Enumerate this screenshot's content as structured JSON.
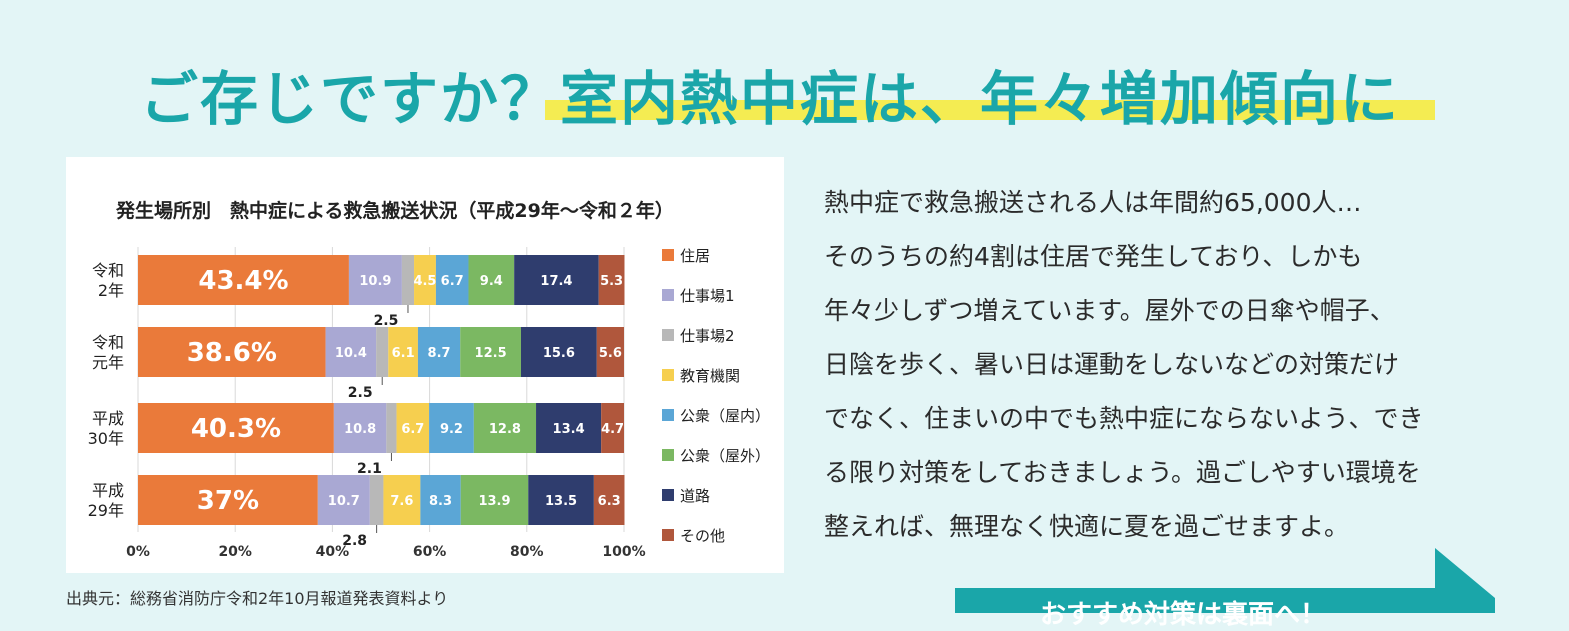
{
  "headline": {
    "lead": "ご存じですか？",
    "emphasis": "室内熱中症は、年々増加傾向に"
  },
  "chart_data": {
    "type": "bar",
    "orientation": "horizontal",
    "stacked": true,
    "title": "発生場所別　熱中症による救急搬送状況（平成29年～令和２年）",
    "categories": [
      [
        "令和",
        "2年"
      ],
      [
        "令和",
        "元年"
      ],
      [
        "平成",
        "30年"
      ],
      [
        "平成",
        "29年"
      ]
    ],
    "xlim": [
      0,
      100
    ],
    "x_ticks": [
      "0%",
      "20%",
      "40%",
      "60%",
      "80%",
      "100%"
    ],
    "grid": true,
    "legend_position": "right",
    "series": [
      {
        "name": "住居",
        "color": "#ea7a3a",
        "values": [
          43.4,
          38.6,
          40.3,
          37
        ],
        "labels": [
          "43.4",
          "38.6",
          "40.3",
          "37"
        ]
      },
      {
        "name": "仕事場1",
        "color": "#a9a8d3",
        "values": [
          10.9,
          10.4,
          10.8,
          10.7
        ],
        "labels": [
          "10.9",
          "10.4",
          "10.8",
          "10.7"
        ]
      },
      {
        "name": "仕事場2",
        "color": "#b8b8b8",
        "values": [
          2.5,
          2.5,
          2.1,
          2.8
        ],
        "labels": [
          "2.5",
          "2.5",
          "2.1",
          "2.8"
        ]
      },
      {
        "name": "教育機関",
        "color": "#f6cf4f",
        "values": [
          4.5,
          6.1,
          6.7,
          7.6
        ],
        "labels": [
          "4.5",
          "6.1",
          "6.7",
          "7.6"
        ]
      },
      {
        "name": "公衆（屋内）",
        "color": "#5ba6d6",
        "values": [
          6.7,
          8.7,
          9.2,
          8.3
        ],
        "labels": [
          "6.7",
          "8.7",
          "9.2",
          "8.3"
        ]
      },
      {
        "name": "公衆（屋外）",
        "color": "#7bb862",
        "values": [
          9.4,
          12.5,
          12.8,
          13.9
        ],
        "labels": [
          "9.4",
          "12.5",
          "12.8",
          "13.9"
        ]
      },
      {
        "name": "道路",
        "color": "#2f3d6e",
        "values": [
          17.4,
          15.6,
          13.4,
          13.5
        ],
        "labels": [
          "17.4",
          "15.6",
          "13.4",
          "13.5"
        ]
      },
      {
        "name": "その他",
        "color": "#b0573c",
        "values": [
          5.3,
          5.6,
          4.7,
          6.3
        ],
        "labels": [
          "5.3",
          "5.6",
          "4.7",
          "6.3"
        ]
      }
    ],
    "percent_suffix": "%"
  },
  "source_note": "出典元：総務省消防庁令和2年10月報道発表資料より",
  "body_lines": [
    "熱中症で救急搬送される人は年間約65,000人…",
    "そのうちの約4割は住居で発生しており、しかも",
    "年々少しずつ増えています。屋外での日傘や帽子、",
    "日陰を歩く、暑い日は運動をしないなどの対策だけ",
    "でなく、住まいの中でも熱中症にならないよう、でき",
    "る限り対策をしておきましょう。過ごしやすい環境を",
    "整えれば、無理なく快適に夏を過ごせますよ。"
  ],
  "cta": {
    "label": "おすすめ対策は裏面へ！",
    "color": "#1aa6a9"
  }
}
